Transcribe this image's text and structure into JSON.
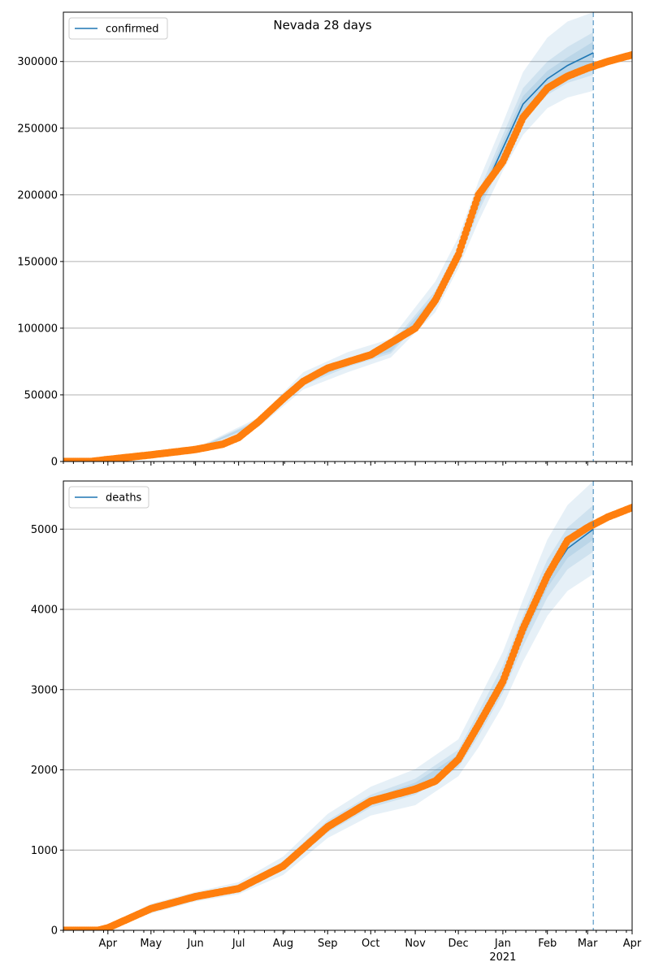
{
  "title": "Nevada 28 days",
  "colors": {
    "model": "#1f77b4",
    "observed": "#ff7f0e",
    "band": "#1f77b4",
    "grid": "#b0b0b0",
    "axis": "#000000"
  },
  "x_axis": {
    "start": "2020-03-01",
    "end": "2021-04-01",
    "month_ticks": [
      {
        "date": "2020-04-01",
        "label": "Apr"
      },
      {
        "date": "2020-05-01",
        "label": "May"
      },
      {
        "date": "2020-06-01",
        "label": "Jun"
      },
      {
        "date": "2020-07-01",
        "label": "Jul"
      },
      {
        "date": "2020-08-01",
        "label": "Aug"
      },
      {
        "date": "2020-09-01",
        "label": "Sep"
      },
      {
        "date": "2020-10-01",
        "label": "Oct"
      },
      {
        "date": "2020-11-01",
        "label": "Nov"
      },
      {
        "date": "2020-12-01",
        "label": "Dec"
      },
      {
        "date": "2021-01-01",
        "label": "Jan"
      },
      {
        "date": "2021-02-01",
        "label": "Feb"
      },
      {
        "date": "2021-03-01",
        "label": "Mar"
      },
      {
        "date": "2021-04-01",
        "label": "Apr"
      }
    ],
    "year_label": "2021",
    "year_date": "2021-01-01"
  },
  "chart_data": [
    {
      "type": "line",
      "legend": "confirmed",
      "legend_position": "upper-left",
      "grid": "horizontal",
      "ylim": [
        0,
        337000
      ],
      "yticks": [
        0,
        50000,
        100000,
        150000,
        200000,
        250000,
        300000
      ],
      "ytick_labels": [
        "0",
        "50000",
        "100000",
        "150000",
        "200000",
        "250000",
        "300000"
      ],
      "forecast_start": "2021-03-05",
      "model_line": {
        "name": "confirmed",
        "x": [
          "2020-03-01",
          "2020-04-01",
          "2020-05-01",
          "2020-06-01",
          "2020-06-25",
          "2020-07-15",
          "2020-08-01",
          "2020-08-15",
          "2020-09-01",
          "2020-10-01",
          "2020-11-01",
          "2020-11-15",
          "2020-12-01",
          "2020-12-15",
          "2021-01-01",
          "2021-01-15",
          "2021-02-01",
          "2021-02-15",
          "2021-03-05"
        ],
        "y": [
          0,
          1500,
          5000,
          9000,
          14000,
          30000,
          47000,
          60000,
          70000,
          80000,
          100000,
          122000,
          155000,
          195000,
          235000,
          268000,
          287000,
          297000,
          306500
        ]
      },
      "bands": [
        {
          "x": [
            "2020-03-01",
            "2020-06-01",
            "2020-07-15",
            "2020-08-15",
            "2020-09-15",
            "2020-10-15",
            "2020-11-15",
            "2020-12-01",
            "2020-12-15",
            "2021-01-01",
            "2021-01-15",
            "2021-02-01",
            "2021-02-15",
            "2021-03-05"
          ],
          "lower": [
            0,
            8000,
            26000,
            54000,
            67000,
            78000,
            112000,
            145000,
            180000,
            218000,
            245000,
            265000,
            273000,
            278000
          ],
          "upper": [
            0,
            10000,
            33000,
            67000,
            82000,
            92000,
            135000,
            168000,
            210000,
            254000,
            292000,
            318000,
            330000,
            337000
          ]
        },
        {
          "x": [
            "2020-03-01",
            "2020-06-01",
            "2020-07-15",
            "2020-08-15",
            "2020-09-15",
            "2020-10-15",
            "2020-11-15",
            "2020-12-01",
            "2020-12-15",
            "2021-01-01",
            "2021-01-15",
            "2021-02-01",
            "2021-02-15",
            "2021-03-05"
          ],
          "lower": [
            0,
            8500,
            27500,
            57000,
            71000,
            81000,
            117000,
            150000,
            187000,
            226000,
            256000,
            275000,
            284000,
            290000
          ],
          "upper": [
            0,
            9500,
            31500,
            63000,
            77000,
            88000,
            128000,
            161000,
            202000,
            245000,
            280000,
            300000,
            311000,
            322000
          ]
        },
        {
          "x": [
            "2020-03-01",
            "2020-06-01",
            "2020-07-15",
            "2020-08-15",
            "2020-09-15",
            "2020-10-15",
            "2020-11-15",
            "2020-12-01",
            "2020-12-15",
            "2021-01-01",
            "2021-01-15",
            "2021-02-01",
            "2021-02-15",
            "2021-03-05"
          ],
          "lower": [
            0,
            8800,
            28500,
            58500,
            72500,
            82500,
            119500,
            152500,
            190500,
            230000,
            262000,
            281000,
            290000,
            298000
          ],
          "upper": [
            0,
            9200,
            30500,
            61500,
            75500,
            86500,
            125000,
            158000,
            198000,
            240000,
            274000,
            293000,
            303000,
            315000
          ]
        }
      ],
      "observed": {
        "name": "observed",
        "x": [
          "2020-03-01",
          "2020-03-20",
          "2020-04-01",
          "2020-05-01",
          "2020-06-01",
          "2020-06-20",
          "2020-07-01",
          "2020-07-15",
          "2020-08-01",
          "2020-08-15",
          "2020-09-01",
          "2020-10-01",
          "2020-11-01",
          "2020-11-15",
          "2020-12-01",
          "2020-12-15",
          "2021-01-01",
          "2021-01-15",
          "2021-02-01",
          "2021-02-15",
          "2021-03-01",
          "2021-03-15",
          "2021-04-01"
        ],
        "y": [
          0,
          0,
          1500,
          5000,
          9000,
          13000,
          18000,
          30000,
          47000,
          60000,
          70000,
          80000,
          100000,
          121000,
          155000,
          200000,
          225000,
          258000,
          280000,
          289000,
          295000,
          300000,
          305000
        ]
      }
    },
    {
      "type": "line",
      "legend": "deaths",
      "legend_position": "upper-left",
      "grid": "horizontal",
      "ylim": [
        0,
        5600
      ],
      "yticks": [
        0,
        1000,
        2000,
        3000,
        4000,
        5000
      ],
      "ytick_labels": [
        "0",
        "1000",
        "2000",
        "3000",
        "4000",
        "5000"
      ],
      "forecast_start": "2021-03-05",
      "model_line": {
        "name": "deaths",
        "x": [
          "2020-03-01",
          "2020-03-25",
          "2020-04-01",
          "2020-05-01",
          "2020-06-01",
          "2020-07-01",
          "2020-08-01",
          "2020-09-01",
          "2020-10-01",
          "2020-11-01",
          "2020-11-15",
          "2020-12-01",
          "2020-12-15",
          "2021-01-01",
          "2021-01-15",
          "2021-02-01",
          "2021-02-15",
          "2021-03-05"
        ],
        "y": [
          0,
          0,
          30,
          270,
          420,
          520,
          800,
          1290,
          1610,
          1790,
          1870,
          2130,
          2560,
          3120,
          3720,
          4380,
          4760,
          5000
        ]
      },
      "bands": [
        {
          "x": [
            "2020-03-01",
            "2020-03-25",
            "2020-05-01",
            "2020-06-01",
            "2020-07-01",
            "2020-08-01",
            "2020-09-01",
            "2020-10-01",
            "2020-11-01",
            "2020-12-01",
            "2020-12-15",
            "2021-01-01",
            "2021-01-15",
            "2021-02-01",
            "2021-02-15",
            "2021-03-05"
          ],
          "lower": [
            0,
            0,
            210,
            360,
            450,
            690,
            1150,
            1430,
            1560,
            1920,
            2280,
            2800,
            3350,
            3920,
            4230,
            4440
          ],
          "upper": [
            0,
            0,
            330,
            480,
            600,
            920,
            1450,
            1790,
            2010,
            2380,
            2870,
            3470,
            4120,
            4870,
            5300,
            5600
          ]
        },
        {
          "x": [
            "2020-03-01",
            "2020-03-25",
            "2020-05-01",
            "2020-06-01",
            "2020-07-01",
            "2020-08-01",
            "2020-09-01",
            "2020-10-01",
            "2020-11-01",
            "2020-12-01",
            "2020-12-15",
            "2021-01-01",
            "2021-01-15",
            "2021-02-01",
            "2021-02-15",
            "2021-03-05"
          ],
          "lower": [
            0,
            0,
            240,
            390,
            480,
            750,
            1220,
            1530,
            1690,
            2030,
            2420,
            2960,
            3540,
            4150,
            4500,
            4720
          ],
          "upper": [
            0,
            0,
            300,
            450,
            560,
            860,
            1370,
            1690,
            1890,
            2250,
            2720,
            3300,
            3920,
            4620,
            5020,
            5300
          ]
        },
        {
          "x": [
            "2020-03-01",
            "2020-03-25",
            "2020-05-01",
            "2020-06-01",
            "2020-07-01",
            "2020-08-01",
            "2020-09-01",
            "2020-10-01",
            "2020-11-01",
            "2020-12-01",
            "2020-12-15",
            "2021-01-01",
            "2021-01-15",
            "2021-02-01",
            "2021-02-15",
            "2021-03-05"
          ],
          "lower": [
            0,
            0,
            255,
            405,
            500,
            775,
            1255,
            1575,
            1740,
            2080,
            2490,
            3040,
            3630,
            4270,
            4640,
            4870
          ],
          "upper": [
            0,
            0,
            285,
            435,
            540,
            830,
            1330,
            1645,
            1840,
            2190,
            2640,
            3200,
            3810,
            4490,
            4880,
            5130
          ]
        }
      ],
      "observed": {
        "name": "observed",
        "x": [
          "2020-03-01",
          "2020-03-25",
          "2020-04-01",
          "2020-05-01",
          "2020-06-01",
          "2020-07-01",
          "2020-08-01",
          "2020-09-01",
          "2020-10-01",
          "2020-11-01",
          "2020-11-15",
          "2020-12-01",
          "2020-12-15",
          "2021-01-01",
          "2021-01-15",
          "2021-02-01",
          "2021-02-15",
          "2021-03-01",
          "2021-03-15",
          "2021-04-01"
        ],
        "y": [
          0,
          0,
          30,
          270,
          420,
          520,
          800,
          1290,
          1610,
          1760,
          1860,
          2130,
          2560,
          3100,
          3760,
          4420,
          4860,
          5020,
          5150,
          5270
        ]
      }
    }
  ]
}
